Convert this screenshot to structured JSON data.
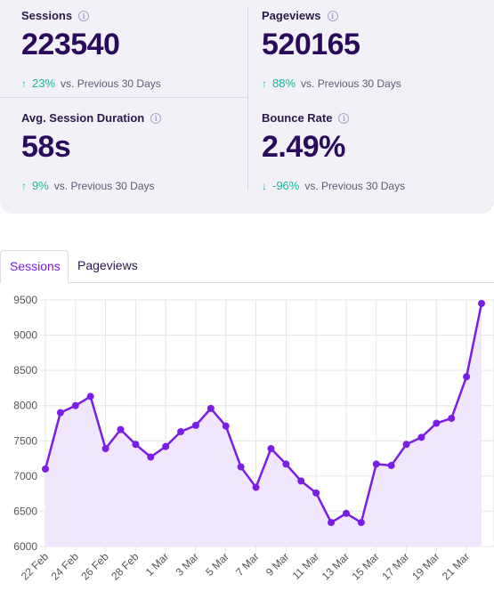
{
  "stats": [
    {
      "label": "Sessions",
      "value": "223540",
      "arrow": "↑",
      "change": "23%",
      "caption": "vs. Previous 30 Days"
    },
    {
      "label": "Pageviews",
      "value": "520165",
      "arrow": "↑",
      "change": "88%",
      "caption": "vs. Previous 30 Days"
    },
    {
      "label": "Avg. Session Duration",
      "value": "58s",
      "arrow": "↑",
      "change": "9%",
      "caption": "vs. Previous 30 Days"
    },
    {
      "label": "Bounce Rate",
      "value": "2.49%",
      "arrow": "↓",
      "change": "-96%",
      "caption": "vs. Previous 30 Days"
    }
  ],
  "info_icon_glyph": "i",
  "tabs": [
    {
      "label": "Sessions",
      "active": true
    },
    {
      "label": "Pageviews",
      "active": false
    }
  ],
  "colors": {
    "accent": "#7a1ee6",
    "positive": "#16b89c",
    "area_fill": "#f0e6fd",
    "grid": "#e6e6e6"
  },
  "chart_data": {
    "type": "area",
    "x": [
      "22 Feb",
      "23 Feb",
      "24 Feb",
      "25 Feb",
      "26 Feb",
      "27 Feb",
      "28 Feb",
      "29 Feb",
      "1 Mar",
      "2 Mar",
      "3 Mar",
      "4 Mar",
      "5 Mar",
      "6 Mar",
      "7 Mar",
      "8 Mar",
      "9 Mar",
      "10 Mar",
      "11 Mar",
      "12 Mar",
      "13 Mar",
      "14 Mar",
      "15 Mar",
      "16 Mar",
      "17 Mar",
      "18 Mar",
      "19 Mar",
      "20 Mar",
      "21 Mar",
      "22 Mar"
    ],
    "x_tick_labels": [
      "22 Feb",
      "24 Feb",
      "26 Feb",
      "28 Feb",
      "1 Mar",
      "3 Mar",
      "5 Mar",
      "7 Mar",
      "9 Mar",
      "11 Mar",
      "13 Mar",
      "15 Mar",
      "17 Mar",
      "19 Mar",
      "21 Mar"
    ],
    "series": [
      {
        "values": [
          7100,
          7900,
          8000,
          8130,
          7390,
          7660,
          7450,
          7270,
          7420,
          7630,
          7720,
          7960,
          7710,
          7130,
          6840,
          7390,
          7170,
          6930,
          6760,
          6340,
          6470,
          6340,
          7170,
          7150,
          7450,
          7550,
          7750,
          7820,
          8410,
          9450
        ]
      }
    ],
    "ylim": [
      6000,
      9500
    ],
    "y_ticks": [
      6000,
      6500,
      7000,
      7500,
      8000,
      8500,
      9000,
      9500
    ],
    "grid": true,
    "legend": "none",
    "title": "",
    "xlabel": "",
    "ylabel": ""
  }
}
